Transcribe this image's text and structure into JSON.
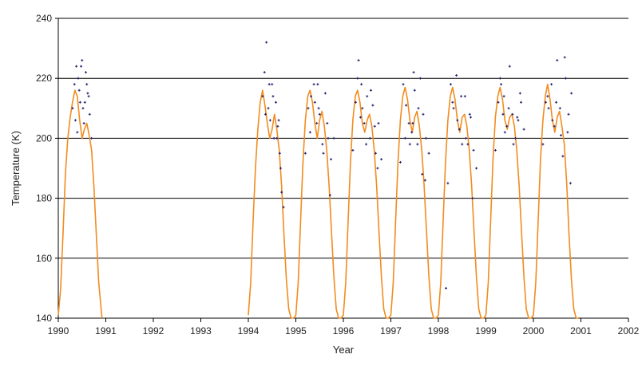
{
  "chart_data": {
    "type": "line",
    "xlabel": "Year",
    "ylabel": "Temperature (K)",
    "xlim": [
      1990,
      2002
    ],
    "ylim": [
      140,
      240
    ],
    "x_ticks": [
      "1990",
      "1991",
      "1992",
      "1993",
      "1994",
      "1995",
      "1996",
      "1997",
      "1998",
      "1999",
      "2000",
      "2001",
      "2002"
    ],
    "y_ticks": [
      "140",
      "160",
      "180",
      "200",
      "220",
      "240"
    ],
    "grid": "horizontal",
    "legend": "none",
    "series": [
      {
        "kind": "line",
        "color": "#f28c1e",
        "x": [
          1990.0,
          1990.05,
          1990.1,
          1990.15,
          1990.2,
          1990.25,
          1990.3,
          1990.35,
          1990.4,
          1990.45,
          1990.5,
          1990.55,
          1990.6,
          1990.65,
          1990.7,
          1990.75,
          1990.8,
          1990.85,
          1990.92,
          1994.0,
          1994.05,
          1994.1,
          1994.15,
          1994.2,
          1994.25,
          1994.3,
          1994.35,
          1994.4,
          1994.45,
          1994.5,
          1994.55,
          1994.6,
          1994.65,
          1994.7,
          1994.75,
          1994.8,
          1994.85,
          1994.9,
          1994.95,
          1995.0,
          1995.05,
          1995.1,
          1995.15,
          1995.2,
          1995.25,
          1995.3,
          1995.35,
          1995.4,
          1995.45,
          1995.5,
          1995.55,
          1995.6,
          1995.65,
          1995.7,
          1995.75,
          1995.8,
          1995.85,
          1995.9,
          1995.95,
          1996.0,
          1996.05,
          1996.1,
          1996.15,
          1996.2,
          1996.25,
          1996.3,
          1996.35,
          1996.4,
          1996.45,
          1996.5,
          1996.55,
          1996.6,
          1996.65,
          1996.7,
          1996.75,
          1996.8,
          1996.85,
          1996.9,
          1996.95,
          1997.0,
          1997.05,
          1997.1,
          1997.15,
          1997.2,
          1997.25,
          1997.3,
          1997.35,
          1997.4,
          1997.45,
          1997.5,
          1997.55,
          1997.6,
          1997.65,
          1997.7,
          1997.75,
          1997.8,
          1997.85,
          1997.9,
          1997.95,
          1998.0,
          1998.05,
          1998.1,
          1998.15,
          1998.2,
          1998.25,
          1998.3,
          1998.35,
          1998.4,
          1998.45,
          1998.5,
          1998.55,
          1998.6,
          1998.65,
          1998.7,
          1998.75,
          1998.8,
          1998.85,
          1998.9,
          1998.95,
          1999.0,
          1999.05,
          1999.1,
          1999.15,
          1999.2,
          1999.25,
          1999.3,
          1999.35,
          1999.4,
          1999.45,
          1999.5,
          1999.55,
          1999.6,
          1999.65,
          1999.7,
          1999.75,
          1999.8,
          1999.85,
          1999.9,
          1999.95,
          2000.0,
          2000.05,
          2000.1,
          2000.15,
          2000.2,
          2000.25,
          2000.3,
          2000.35,
          2000.4,
          2000.45,
          2000.5,
          2000.55,
          2000.6,
          2000.65,
          2000.7,
          2000.75,
          2000.8,
          2000.85,
          2000.9,
          2000.95
        ],
        "y": [
          141,
          150,
          168,
          188,
          200,
          207,
          212,
          216,
          214,
          206,
          200,
          203,
          205,
          201,
          196,
          184,
          168,
          152,
          140,
          141,
          152,
          172,
          190,
          203,
          212,
          216,
          211,
          205,
          200,
          203,
          208,
          203,
          196,
          184,
          168,
          153,
          143,
          140,
          140,
          141,
          152,
          172,
          192,
          206,
          214,
          216,
          212,
          205,
          200,
          206,
          209,
          204,
          196,
          184,
          169,
          154,
          143,
          140,
          140,
          141,
          152,
          172,
          192,
          206,
          214,
          216,
          212,
          205,
          202,
          206,
          208,
          204,
          196,
          184,
          169,
          154,
          143,
          140,
          140,
          141,
          152,
          172,
          192,
          206,
          214,
          217,
          213,
          206,
          202,
          207,
          209,
          204,
          196,
          184,
          169,
          154,
          143,
          140,
          140,
          141,
          152,
          172,
          192,
          206,
          214,
          217,
          213,
          206,
          202,
          207,
          208,
          204,
          196,
          184,
          169,
          154,
          143,
          140,
          140,
          141,
          152,
          172,
          193,
          207,
          214,
          217,
          213,
          206,
          203,
          207,
          208,
          204,
          196,
          184,
          169,
          154,
          143,
          140,
          140,
          141,
          152,
          172,
          193,
          206,
          214,
          218,
          213,
          206,
          202,
          207,
          209,
          204,
          198,
          185,
          168,
          153,
          143,
          140,
          140
        ]
      },
      {
        "kind": "scatter",
        "color": "#1a1a6e",
        "x": [
          1990.3,
          1990.34,
          1990.38,
          1990.42,
          1990.46,
          1990.5,
          1990.54,
          1990.58,
          1990.62,
          1990.66,
          1990.7,
          1990.36,
          1990.44,
          1990.52,
          1990.6,
          1990.4,
          1990.48,
          1990.56,
          1990.64,
          1994.3,
          1994.34,
          1994.38,
          1994.42,
          1994.46,
          1994.5,
          1994.54,
          1994.58,
          1994.62,
          1994.66,
          1994.7,
          1994.74,
          1994.36,
          1994.44,
          1994.52,
          1994.6,
          1994.64,
          1994.68,
          1995.2,
          1995.26,
          1995.32,
          1995.38,
          1995.44,
          1995.5,
          1995.56,
          1995.62,
          1995.68,
          1995.74,
          1995.8,
          1995.3,
          1995.4,
          1995.48,
          1995.58,
          1995.66,
          1995.72,
          1995.46,
          1996.2,
          1996.26,
          1996.32,
          1996.38,
          1996.44,
          1996.5,
          1996.56,
          1996.62,
          1996.68,
          1996.74,
          1996.8,
          1996.3,
          1996.4,
          1996.48,
          1996.58,
          1996.66,
          1996.72,
          1996.36,
          1997.2,
          1997.26,
          1997.32,
          1997.38,
          1997.44,
          1997.5,
          1997.56,
          1997.62,
          1997.68,
          1997.74,
          1997.8,
          1997.3,
          1997.4,
          1997.48,
          1997.58,
          1997.66,
          1997.72,
          1997.46,
          1998.2,
          1998.26,
          1998.32,
          1998.38,
          1998.44,
          1998.5,
          1998.56,
          1998.62,
          1998.68,
          1998.74,
          1998.8,
          1998.3,
          1998.4,
          1998.48,
          1998.58,
          1998.66,
          1998.72,
          1998.16,
          1999.2,
          1999.26,
          1999.32,
          1999.38,
          1999.44,
          1999.5,
          1999.56,
          1999.62,
          1999.68,
          1999.74,
          1999.8,
          1999.3,
          1999.4,
          1999.48,
          1999.58,
          1999.66,
          1999.72,
          1999.36,
          2000.2,
          2000.26,
          2000.32,
          2000.38,
          2000.44,
          2000.5,
          2000.56,
          2000.62,
          2000.68,
          2000.74,
          2000.8,
          2000.3,
          2000.4,
          2000.48,
          2000.58,
          2000.66,
          2000.72,
          2000.78
        ],
        "y": [
          210,
          218,
          224,
          220,
          212,
          226,
          205,
          222,
          215,
          208,
          200,
          206,
          216,
          210,
          218,
          202,
          224,
          212,
          214,
          214,
          222,
          232,
          210,
          206,
          218,
          200,
          212,
          204,
          195,
          182,
          177,
          208,
          218,
          214,
          200,
          206,
          190,
          195,
          210,
          214,
          218,
          205,
          208,
          198,
          215,
          200,
          193,
          200,
          202,
          212,
          210,
          195,
          205,
          181,
          218,
          196,
          212,
          226,
          218,
          205,
          214,
          200,
          211,
          195,
          205,
          193,
          220,
          210,
          198,
          216,
          204,
          190,
          207,
          192,
          218,
          211,
          205,
          202,
          216,
          198,
          220,
          208,
          200,
          195,
          200,
          198,
          222,
          210,
          188,
          186,
          205,
          185,
          218,
          210,
          221,
          203,
          198,
          214,
          198,
          207,
          196,
          190,
          212,
          206,
          214,
          200,
          208,
          180,
          150,
          196,
          212,
          218,
          214,
          204,
          224,
          208,
          200,
          206,
          212,
          203,
          220,
          202,
          210,
          198,
          207,
          215,
          208,
          198,
          212,
          210,
          218,
          204,
          226,
          210,
          194,
          220,
          208,
          215,
          214,
          206,
          212,
          201,
          227,
          202,
          185
        ]
      }
    ]
  }
}
